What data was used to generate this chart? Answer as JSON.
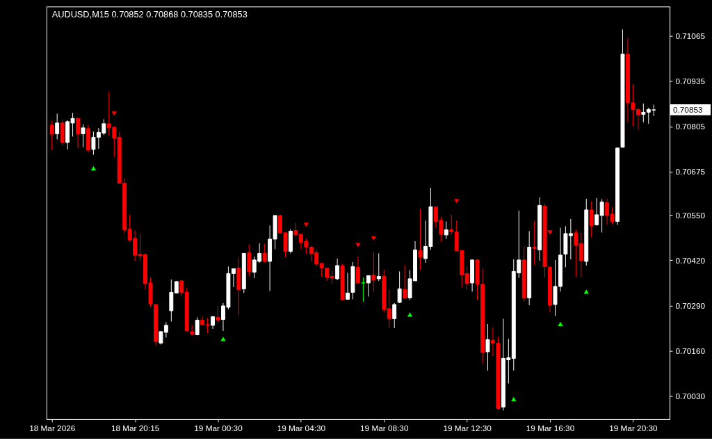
{
  "chart_data": {
    "type": "candlestick",
    "title": "AUDUSD,M15  0.70852 0.70868 0.70835 0.70853",
    "categories": [
      "18 Mar 2026",
      null,
      null,
      null,
      null,
      null,
      null,
      null,
      null,
      null,
      null,
      null,
      null,
      null,
      null,
      null,
      "18 Mar 20:15",
      null,
      null,
      null,
      null,
      null,
      null,
      null,
      null,
      null,
      null,
      null,
      null,
      null,
      null,
      null,
      "19 Mar 00:30",
      null,
      null,
      null,
      null,
      null,
      null,
      null,
      null,
      null,
      null,
      null,
      null,
      null,
      null,
      null,
      "19 Mar 04:30",
      null,
      null,
      null,
      null,
      null,
      null,
      null,
      null,
      null,
      null,
      null,
      null,
      null,
      null,
      null,
      "19 Mar 08:30",
      null,
      null,
      null,
      null,
      null,
      null,
      null,
      null,
      null,
      null,
      null,
      null,
      null,
      null,
      null,
      "19 Mar 12:30",
      null,
      null,
      null,
      null,
      null,
      null,
      null,
      null,
      null,
      null,
      null,
      null,
      null,
      null,
      null,
      "19 Mar 16:30",
      null,
      null,
      null,
      null,
      null,
      null,
      null,
      null,
      null,
      null,
      null,
      null,
      null,
      null,
      null,
      "19 Mar 20:30",
      null,
      null,
      null,
      null
    ],
    "ohlc": [
      [
        0.70809,
        0.70821,
        0.70737,
        0.70784
      ],
      [
        0.70784,
        0.70842,
        0.70768,
        0.70815
      ],
      [
        0.70815,
        0.70825,
        0.70751,
        0.70759
      ],
      [
        0.70759,
        0.70823,
        0.70739,
        0.70819
      ],
      [
        0.70815,
        0.70844,
        0.70776,
        0.70828
      ],
      [
        0.70828,
        0.70828,
        0.70743,
        0.70784
      ],
      [
        0.70784,
        0.70811,
        0.70745,
        0.70801
      ],
      [
        0.70799,
        0.70809,
        0.70731,
        0.70737
      ],
      [
        0.70739,
        0.7079,
        0.70724,
        0.70774
      ],
      [
        0.70774,
        0.70801,
        0.70741,
        0.70788
      ],
      [
        0.70786,
        0.70826,
        0.7078,
        0.70813
      ],
      [
        0.70813,
        0.70904,
        0.70778,
        0.70801
      ],
      [
        0.70803,
        0.70803,
        0.70718,
        0.70772
      ],
      [
        0.70774,
        0.7079,
        0.7064,
        0.70642
      ],
      [
        0.70642,
        0.70656,
        0.70497,
        0.70508
      ],
      [
        0.7051,
        0.70551,
        0.70473,
        0.70479
      ],
      [
        0.70483,
        0.70506,
        0.70417,
        0.70435
      ],
      [
        0.70437,
        0.70497,
        0.70419,
        0.70433
      ],
      [
        0.70437,
        0.70437,
        0.70336,
        0.70353
      ],
      [
        0.70355,
        0.70371,
        0.70287,
        0.70295
      ],
      [
        0.70293,
        0.70293,
        0.70175,
        0.70186
      ],
      [
        0.70182,
        0.70217,
        0.70178,
        0.70215
      ],
      [
        0.70213,
        0.70242,
        0.70198,
        0.70233
      ],
      [
        0.70275,
        0.70365,
        0.70244,
        0.70328
      ],
      [
        0.70326,
        0.70361,
        0.70326,
        0.70359
      ],
      [
        0.70361,
        0.70363,
        0.70316,
        0.70328
      ],
      [
        0.70328,
        0.7034,
        0.70217,
        0.70217
      ],
      [
        0.70215,
        0.70233,
        0.70204,
        0.70208
      ],
      [
        0.70206,
        0.70256,
        0.70204,
        0.70248
      ],
      [
        0.70248,
        0.7026,
        0.70233,
        0.70235
      ],
      [
        0.70235,
        0.70254,
        0.70211,
        0.70233
      ],
      [
        0.70233,
        0.7026,
        0.70223,
        0.70258
      ],
      [
        0.70256,
        0.70289,
        0.70239,
        0.70248
      ],
      [
        0.7025,
        0.70297,
        0.70217,
        0.70289
      ],
      [
        0.70285,
        0.70402,
        0.70279,
        0.70382
      ],
      [
        0.70382,
        0.70396,
        0.70343,
        0.70396
      ],
      [
        0.70398,
        0.70427,
        0.70262,
        0.70336
      ],
      [
        0.70338,
        0.7044,
        0.70326,
        0.7044
      ],
      [
        0.70442,
        0.70466,
        0.70374,
        0.70388
      ],
      [
        0.70386,
        0.70431,
        0.70369,
        0.70421
      ],
      [
        0.70417,
        0.70469,
        0.70413,
        0.7044
      ],
      [
        0.7044,
        0.70468,
        0.70413,
        0.70417
      ],
      [
        0.70417,
        0.7052,
        0.70332,
        0.70481
      ],
      [
        0.70481,
        0.70549,
        0.70452,
        0.70549
      ],
      [
        0.70549,
        0.70551,
        0.70497,
        0.70499
      ],
      [
        0.70499,
        0.70502,
        0.70429,
        0.70446
      ],
      [
        0.70446,
        0.7051,
        0.7044,
        0.70504
      ],
      [
        0.70506,
        0.70528,
        0.70489,
        0.70493
      ],
      [
        0.70495,
        0.70495,
        0.70452,
        0.70471
      ],
      [
        0.70475,
        0.70483,
        0.70438,
        0.70458
      ],
      [
        0.70458,
        0.70462,
        0.70417,
        0.7044
      ],
      [
        0.70442,
        0.7045,
        0.70404,
        0.70409
      ],
      [
        0.70411,
        0.70413,
        0.70372,
        0.70398
      ],
      [
        0.70398,
        0.70398,
        0.70361,
        0.70371
      ],
      [
        0.70374,
        0.7039,
        0.70353,
        0.70369
      ],
      [
        0.70367,
        0.70425,
        0.70363,
        0.70405
      ],
      [
        0.70404,
        0.70409,
        0.70305,
        0.70306
      ],
      [
        0.70308,
        0.70384,
        0.70306,
        0.70326
      ],
      [
        0.70328,
        0.70415,
        0.70308,
        0.70402
      ],
      [
        0.704,
        0.70431,
        0.70353,
        0.70355
      ],
      [
        0.70355,
        0.70371,
        0.70301,
        0.70355
      ],
      [
        0.70355,
        0.70376,
        0.70316,
        0.70376
      ],
      [
        0.70378,
        0.70444,
        0.70328,
        0.70363
      ],
      [
        0.70367,
        0.7044,
        0.70361,
        0.70374
      ],
      [
        0.70374,
        0.70392,
        0.7027,
        0.70279
      ],
      [
        0.70281,
        0.70336,
        0.70225,
        0.70252
      ],
      [
        0.70252,
        0.70297,
        0.70225,
        0.70293
      ],
      [
        0.70299,
        0.70388,
        0.70297,
        0.70338
      ],
      [
        0.70336,
        0.70407,
        0.70312,
        0.70312
      ],
      [
        0.70312,
        0.70392,
        0.70306,
        0.70367
      ],
      [
        0.70361,
        0.70475,
        0.70361,
        0.7045
      ],
      [
        0.70448,
        0.70568,
        0.70392,
        0.70429
      ],
      [
        0.70425,
        0.70534,
        0.70413,
        0.7046
      ],
      [
        0.7046,
        0.70629,
        0.7045,
        0.70574
      ],
      [
        0.70574,
        0.70574,
        0.70514,
        0.70532
      ],
      [
        0.70535,
        0.70545,
        0.70473,
        0.70495
      ],
      [
        0.70493,
        0.70532,
        0.70481,
        0.70508
      ],
      [
        0.70508,
        0.70551,
        0.70493,
        0.70502
      ],
      [
        0.70502,
        0.70535,
        0.70446,
        0.70448
      ],
      [
        0.70448,
        0.70448,
        0.70343,
        0.70378
      ],
      [
        0.70382,
        0.70402,
        0.70336,
        0.70353
      ],
      [
        0.70355,
        0.70423,
        0.7033,
        0.70421
      ],
      [
        0.70421,
        0.70423,
        0.70306,
        0.70351
      ],
      [
        0.70351,
        0.70396,
        0.70122,
        0.70155
      ],
      [
        0.70157,
        0.70237,
        0.70103,
        0.70192
      ],
      [
        0.7019,
        0.70227,
        0.70144,
        0.70182
      ],
      [
        0.70182,
        0.702,
        0.6999,
        0.69994
      ],
      [
        0.69998,
        0.70252,
        0.69988,
        0.70138
      ],
      [
        0.70134,
        0.70194,
        0.70066,
        0.7014
      ],
      [
        0.70138,
        0.70423,
        0.70103,
        0.70388
      ],
      [
        0.70384,
        0.70563,
        0.70369,
        0.70421
      ],
      [
        0.70421,
        0.7046,
        0.70301,
        0.70312
      ],
      [
        0.70312,
        0.70504,
        0.70291,
        0.70458
      ],
      [
        0.70458,
        0.70532,
        0.70407,
        0.70454
      ],
      [
        0.7045,
        0.70601,
        0.70419,
        0.70578
      ],
      [
        0.70576,
        0.70582,
        0.70371,
        0.70402
      ],
      [
        0.704,
        0.70404,
        0.7027,
        0.70291
      ],
      [
        0.70293,
        0.70421,
        0.7026,
        0.70345
      ],
      [
        0.70345,
        0.70514,
        0.7033,
        0.70435
      ],
      [
        0.70438,
        0.70518,
        0.704,
        0.70497
      ],
      [
        0.70491,
        0.70539,
        0.70423,
        0.70497
      ],
      [
        0.70499,
        0.70508,
        0.70372,
        0.70464
      ],
      [
        0.70468,
        0.70499,
        0.70371,
        0.70419
      ],
      [
        0.70417,
        0.70597,
        0.70405,
        0.70565
      ],
      [
        0.70565,
        0.7059,
        0.70485,
        0.7052
      ],
      [
        0.70522,
        0.70599,
        0.7052,
        0.70551
      ],
      [
        0.70549,
        0.70596,
        0.705,
        0.70588
      ],
      [
        0.70586,
        0.70597,
        0.70522,
        0.70549
      ],
      [
        0.70553,
        0.70572,
        0.70524,
        0.70532
      ],
      [
        0.70532,
        0.70745,
        0.70522,
        0.70743
      ],
      [
        0.70745,
        0.71084,
        0.70745,
        0.71013
      ],
      [
        0.71013,
        0.71059,
        0.70817,
        0.70873
      ],
      [
        0.70873,
        0.70927,
        0.70805,
        0.70854
      ],
      [
        0.70854,
        0.70859,
        0.70795,
        0.70838
      ],
      [
        0.7084,
        0.70871,
        0.70817,
        0.70846
      ],
      [
        0.70846,
        0.70859,
        0.70813,
        0.70854
      ],
      [
        0.70852,
        0.70868,
        0.70835,
        0.70853
      ]
    ],
    "colors": [
      "#ff0000",
      "#ffffff",
      "#ff0000",
      "#ffffff",
      "#ffffff",
      "#ff0000",
      "#ffffff",
      "#ff0000",
      "#ffffff",
      "#ffffff",
      "#ffffff",
      "#ff0000",
      "#ff0000",
      "#ff0000",
      "#ff0000",
      "#ff0000",
      "#ff0000",
      "#ff0000",
      "#ff0000",
      "#ff0000",
      "#ff0000",
      "#ffffff",
      "#ffffff",
      "#ffffff",
      "#ffffff",
      "#ff0000",
      "#ff0000",
      "#ff0000",
      "#ffffff",
      "#ff0000",
      "#ff0000",
      "#ffffff",
      "#ff0000",
      "#ffffff",
      "#ffffff",
      "#ffffff",
      "#ff0000",
      "#ffffff",
      "#ff0000",
      "#ffffff",
      "#ffffff",
      "#ff0000",
      "#ffffff",
      "#ffffff",
      "#ff0000",
      "#ff0000",
      "#ffffff",
      "#ff0000",
      "#ff0000",
      "#ff0000",
      "#ff0000",
      "#ff0000",
      "#ff0000",
      "#ff0000",
      "#ff0000",
      "#ffffff",
      "#ff0000",
      "#ffffff",
      "#ffffff",
      "#ff0000",
      "#00ff00",
      "#ffffff",
      "#ff0000",
      "#ffffff",
      "#ff0000",
      "#ff0000",
      "#ffffff",
      "#ffffff",
      "#ff0000",
      "#ffffff",
      "#ffffff",
      "#ff0000",
      "#ffffff",
      "#ffffff",
      "#ff0000",
      "#ff0000",
      "#ffffff",
      "#ff0000",
      "#ff0000",
      "#ff0000",
      "#ff0000",
      "#ffffff",
      "#ff0000",
      "#ff0000",
      "#ffffff",
      "#ff0000",
      "#ff0000",
      "#ffffff",
      "#ffffff",
      "#ffffff",
      "#ffffff",
      "#ff0000",
      "#ffffff",
      "#ff0000",
      "#ffffff",
      "#ff0000",
      "#ff0000",
      "#ffffff",
      "#ffffff",
      "#ffffff",
      "#ffffff",
      "#ff0000",
      "#ff0000",
      "#ffffff",
      "#ff0000",
      "#ffffff",
      "#ffffff",
      "#ff0000",
      "#ff0000",
      "#ffffff",
      "#ffffff",
      "#ff0000",
      "#ff0000",
      "#ff0000",
      "#ffffff",
      "#ffffff",
      "#ffffff"
    ],
    "series": [
      {
        "type": "scatter",
        "color": "#ff0000",
        "values": [
          null,
          null,
          null,
          null,
          null,
          null,
          null,
          null,
          null,
          null,
          null,
          null,
          0.70842,
          null,
          null,
          null,
          null,
          null,
          null,
          null,
          null,
          null,
          null,
          null,
          null,
          null,
          null,
          null,
          null,
          null,
          null,
          null,
          null,
          null,
          null,
          null,
          null,
          null,
          null,
          null,
          null,
          null,
          null,
          null,
          null,
          null,
          null,
          null,
          null,
          0.70522,
          null,
          null,
          null,
          null,
          null,
          null,
          null,
          null,
          null,
          0.70464,
          null,
          null,
          0.70483,
          null,
          null,
          null,
          null,
          null,
          null,
          null,
          null,
          null,
          null,
          null,
          null,
          null,
          null,
          null,
          0.7059,
          null,
          null,
          null,
          null,
          null,
          null,
          null,
          null,
          null,
          null,
          null,
          null,
          null,
          null,
          null,
          null,
          null,
          0.705,
          null,
          null,
          null,
          null,
          null,
          null,
          null,
          null,
          null,
          null,
          null,
          null,
          null,
          null,
          null,
          null,
          null,
          null,
          null,
          null
        ]
      },
      {
        "type": "scatter",
        "color": "#00ff00",
        "values": [
          null,
          null,
          null,
          null,
          null,
          null,
          null,
          null,
          0.70685,
          null,
          null,
          null,
          null,
          null,
          null,
          null,
          null,
          null,
          null,
          null,
          null,
          null,
          null,
          null,
          null,
          null,
          null,
          null,
          null,
          null,
          null,
          null,
          null,
          0.70194,
          null,
          null,
          null,
          null,
          null,
          null,
          null,
          null,
          null,
          null,
          null,
          null,
          null,
          null,
          null,
          null,
          null,
          null,
          null,
          null,
          null,
          null,
          null,
          null,
          null,
          null,
          null,
          null,
          null,
          null,
          null,
          null,
          null,
          null,
          null,
          0.70264,
          null,
          null,
          null,
          null,
          null,
          null,
          null,
          null,
          null,
          null,
          null,
          null,
          null,
          null,
          null,
          null,
          null,
          null,
          null,
          0.70021,
          null,
          null,
          null,
          null,
          null,
          null,
          null,
          null,
          0.70237,
          null,
          null,
          null,
          null,
          0.7033,
          null,
          null,
          null,
          null,
          null,
          null,
          null,
          null,
          null,
          null,
          null,
          null,
          null
        ]
      }
    ],
    "marker": "triangle",
    "ylim": [
      0.69963,
      0.7115
    ],
    "yticks": [
      0.71065,
      0.70935,
      0.70805,
      0.70675,
      {
        "value": 0.7055,
        "label": "0.70550"
      },
      {
        "value": 0.7042,
        "label": "0.70420"
      },
      {
        "value": 0.7029,
        "label": "0.70290"
      },
      {
        "value": 0.7016,
        "label": "0.70160"
      },
      {
        "value": 0.7003,
        "label": "0.70030"
      }
    ],
    "annotations": [
      "0.70853"
    ],
    "grid": false
  }
}
